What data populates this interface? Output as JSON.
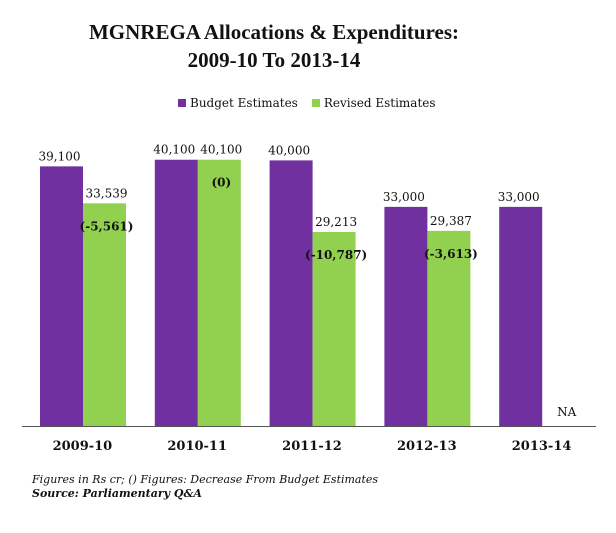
{
  "title": {
    "line1": "MGNREGA Allocations & Expenditures:",
    "line2": "2009-10 To 2013-14"
  },
  "colors": {
    "budget": "#7030a0",
    "revised": "#92d050",
    "axis": "#555555"
  },
  "chart_data": {
    "type": "bar",
    "title": "MGNREGA Allocations & Expenditures: 2009-10 To 2013-14",
    "categories": [
      "2009-10",
      "2010-11",
      "2011-12",
      "2012-13",
      "2013-14"
    ],
    "series": [
      {
        "name": "Budget Estimates",
        "values": [
          39100,
          40100,
          40000,
          33000,
          33000
        ],
        "labels": [
          "39,100",
          "40,100",
          "40,000",
          "33,000",
          "33,000"
        ]
      },
      {
        "name": "Revised Estimates",
        "values": [
          33539,
          40100,
          29213,
          29387,
          null
        ],
        "labels": [
          "33,539",
          "40,100",
          "29,213",
          "29,387",
          "NA"
        ]
      }
    ],
    "annotations": [
      "(-5,561)",
      "(0)",
      "(-10,787)",
      "(-3,613)",
      ""
    ],
    "ylim": [
      0,
      44000
    ],
    "grid": false,
    "legend": "top"
  },
  "footnotes": {
    "note": "Figures in Rs cr; () Figures: Decrease From Budget Estimates",
    "source": "Source: Parliamentary Q&A"
  }
}
